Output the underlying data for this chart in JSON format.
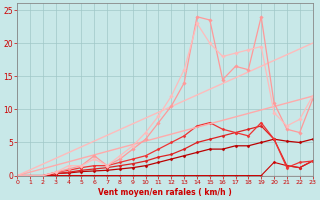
{
  "xlabel": "Vent moyen/en rafales ( km/h )",
  "xlim": [
    0,
    23
  ],
  "ylim": [
    0,
    26
  ],
  "xticks": [
    0,
    1,
    2,
    3,
    4,
    5,
    6,
    7,
    8,
    9,
    10,
    11,
    12,
    13,
    14,
    15,
    16,
    17,
    18,
    19,
    20,
    21,
    22,
    23
  ],
  "yticks": [
    0,
    5,
    10,
    15,
    20,
    25
  ],
  "bg_color": "#c8e8e8",
  "grid_color": "#a0c8c8",
  "series": [
    {
      "x": [
        0,
        1,
        2,
        3,
        4,
        5,
        6,
        7,
        8,
        9,
        10,
        11,
        12,
        13,
        14,
        15,
        16,
        17,
        18,
        19,
        20,
        21,
        22,
        23
      ],
      "y": [
        0,
        0,
        0,
        0,
        0,
        0,
        0,
        0,
        0,
        0,
        0,
        0,
        0,
        0,
        0,
        0,
        0,
        0,
        0,
        0,
        2,
        1.5,
        1.2,
        2.2
      ],
      "color": "#cc0000",
      "lw": 0.8,
      "marker": "D",
      "ms": 1.5
    },
    {
      "x": [
        0,
        1,
        2,
        3,
        4,
        5,
        6,
        7,
        8,
        9,
        10,
        11,
        12,
        13,
        14,
        15,
        16,
        17,
        18,
        19,
        20,
        21,
        22,
        23
      ],
      "y": [
        0,
        0,
        0,
        0.3,
        0.4,
        0.6,
        0.7,
        0.8,
        1.0,
        1.2,
        1.5,
        2.0,
        2.5,
        3.0,
        3.5,
        4.0,
        4.0,
        4.5,
        4.5,
        5.0,
        5.5,
        5.2,
        5.0,
        5.5
      ],
      "color": "#bb0000",
      "lw": 0.9,
      "marker": "D",
      "ms": 1.5
    },
    {
      "x": [
        0,
        1,
        2,
        3,
        4,
        5,
        6,
        7,
        8,
        9,
        10,
        11,
        12,
        13,
        14,
        15,
        16,
        17,
        18,
        19,
        20,
        21,
        22,
        23
      ],
      "y": [
        0,
        0,
        0,
        0.3,
        0.5,
        0.8,
        1.0,
        1.2,
        1.5,
        1.8,
        2.2,
        2.8,
        3.2,
        4.0,
        5.0,
        5.5,
        6.0,
        6.5,
        7.0,
        7.5,
        5.5,
        1.5,
        1.2,
        2.2
      ],
      "color": "#dd2222",
      "lw": 0.9,
      "marker": "D",
      "ms": 1.5
    },
    {
      "x": [
        0,
        1,
        2,
        3,
        4,
        5,
        6,
        7,
        8,
        9,
        10,
        11,
        12,
        13,
        14,
        15,
        16,
        17,
        18,
        19,
        20,
        21,
        22,
        23
      ],
      "y": [
        0,
        0,
        0,
        0.5,
        0.8,
        1.2,
        1.5,
        1.5,
        2.0,
        2.5,
        3.0,
        4.0,
        5.0,
        6.0,
        7.5,
        8.0,
        7.0,
        6.5,
        6.0,
        8.0,
        5.5,
        1.2,
        2.0,
        2.2
      ],
      "color": "#ee3333",
      "lw": 0.9,
      "marker": "D",
      "ms": 1.5
    },
    {
      "x": [
        0,
        23
      ],
      "y": [
        0,
        12
      ],
      "color": "#ffaaaa",
      "lw": 1.0,
      "marker": null,
      "ms": 0
    },
    {
      "x": [
        0,
        23
      ],
      "y": [
        0,
        20
      ],
      "color": "#ffbbbb",
      "lw": 1.0,
      "marker": null,
      "ms": 0
    },
    {
      "x": [
        0,
        1,
        2,
        3,
        4,
        5,
        6,
        7,
        8,
        9,
        10,
        11,
        12,
        13,
        14,
        15,
        16,
        17,
        18,
        19,
        20,
        21,
        22,
        23
      ],
      "y": [
        0,
        0,
        0,
        0.5,
        1.0,
        1.5,
        3.0,
        1.5,
        2.5,
        4.0,
        5.5,
        8.0,
        10.5,
        14.0,
        24.0,
        23.5,
        14.5,
        16.5,
        16.0,
        24.0,
        11.0,
        7.0,
        6.5,
        11.5
      ],
      "color": "#ff9999",
      "lw": 0.9,
      "marker": "D",
      "ms": 1.8
    },
    {
      "x": [
        0,
        1,
        2,
        3,
        4,
        5,
        6,
        7,
        8,
        9,
        10,
        11,
        12,
        13,
        14,
        15,
        16,
        17,
        18,
        19,
        20,
        21,
        22,
        23
      ],
      "y": [
        0,
        0,
        0,
        0.5,
        1.5,
        1.5,
        2.5,
        1.5,
        3.0,
        4.5,
        6.5,
        9.0,
        12.0,
        16.0,
        23.0,
        20.0,
        18.0,
        18.5,
        19.0,
        19.5,
        9.5,
        7.5,
        8.5,
        12.0
      ],
      "color": "#ffbbbb",
      "lw": 0.9,
      "marker": "D",
      "ms": 1.8
    }
  ]
}
